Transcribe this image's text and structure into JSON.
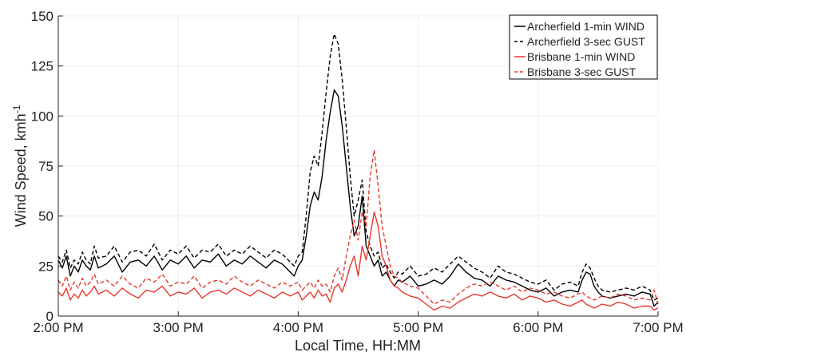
{
  "chart_data": {
    "type": "line",
    "title": "",
    "xlabel": "Local Time, HH:MM",
    "ylabel": "Wind Speed, kmh",
    "ylabel_superscript": "-1",
    "xlim": [
      0,
      300
    ],
    "ylim": [
      0,
      150
    ],
    "x_unit": "minutes after 2:00 PM",
    "x_ticks": [
      {
        "value": 0,
        "label": "2:00 PM"
      },
      {
        "value": 60,
        "label": "3:00 PM"
      },
      {
        "value": 120,
        "label": "4:00 PM"
      },
      {
        "value": 180,
        "label": "5:00 PM"
      },
      {
        "value": 240,
        "label": "6:00 PM"
      },
      {
        "value": 300,
        "label": "7:00 PM"
      }
    ],
    "y_ticks": [
      0,
      25,
      50,
      75,
      100,
      125,
      150
    ],
    "grid": true,
    "legend_position": "top-right",
    "series": [
      {
        "name": "Archerfield 1-min WIND",
        "color": "#000000",
        "dash": "solid",
        "x": [
          0,
          2,
          4,
          6,
          8,
          10,
          12,
          14,
          16,
          18,
          20,
          24,
          28,
          32,
          36,
          40,
          44,
          48,
          52,
          56,
          60,
          64,
          68,
          72,
          76,
          80,
          84,
          88,
          92,
          96,
          100,
          104,
          108,
          112,
          116,
          118,
          120,
          122,
          124,
          126,
          128,
          130,
          132,
          134,
          136,
          138,
          140,
          142,
          144,
          146,
          148,
          150,
          152,
          154,
          156,
          158,
          160,
          162,
          164,
          166,
          168,
          170,
          172,
          176,
          180,
          184,
          188,
          192,
          196,
          200,
          204,
          208,
          212,
          216,
          220,
          224,
          228,
          232,
          236,
          240,
          244,
          248,
          252,
          256,
          260,
          262,
          264,
          266,
          268,
          270,
          272,
          276,
          280,
          284,
          288,
          292,
          296,
          298,
          300
        ],
        "y": [
          28,
          24,
          30,
          20,
          25,
          22,
          28,
          25,
          23,
          30,
          24,
          26,
          30,
          22,
          27,
          28,
          25,
          30,
          23,
          28,
          26,
          30,
          24,
          28,
          27,
          31,
          25,
          28,
          26,
          30,
          27,
          24,
          28,
          26,
          22,
          20,
          25,
          28,
          40,
          55,
          62,
          58,
          70,
          88,
          102,
          113,
          110,
          95,
          75,
          55,
          40,
          45,
          60,
          35,
          30,
          25,
          28,
          20,
          22,
          18,
          15,
          18,
          17,
          20,
          15,
          16,
          18,
          16,
          20,
          26,
          22,
          19,
          18,
          15,
          20,
          18,
          17,
          15,
          13,
          12,
          14,
          10,
          12,
          13,
          12,
          18,
          22,
          21,
          15,
          12,
          10,
          9,
          10,
          11,
          10,
          12,
          11,
          5,
          7
        ]
      },
      {
        "name": "Archerfield 3-sec GUST",
        "color": "#000000",
        "dash": "dashed",
        "x": [
          0,
          2,
          4,
          6,
          8,
          10,
          12,
          14,
          16,
          18,
          20,
          24,
          28,
          32,
          36,
          40,
          44,
          48,
          52,
          56,
          60,
          64,
          68,
          72,
          76,
          80,
          84,
          88,
          92,
          96,
          100,
          104,
          108,
          112,
          116,
          118,
          120,
          122,
          124,
          126,
          128,
          130,
          132,
          134,
          136,
          138,
          140,
          142,
          144,
          146,
          148,
          150,
          152,
          154,
          156,
          158,
          160,
          162,
          164,
          166,
          168,
          170,
          172,
          176,
          180,
          184,
          188,
          192,
          196,
          200,
          204,
          208,
          212,
          216,
          220,
          224,
          228,
          232,
          236,
          240,
          244,
          248,
          252,
          256,
          260,
          262,
          264,
          266,
          268,
          270,
          272,
          276,
          280,
          284,
          288,
          292,
          296,
          298,
          300
        ],
        "y": [
          30,
          27,
          33,
          24,
          28,
          26,
          32,
          28,
          26,
          35,
          29,
          30,
          35,
          27,
          32,
          33,
          30,
          36,
          28,
          33,
          31,
          35,
          29,
          33,
          32,
          36,
          30,
          33,
          31,
          35,
          32,
          29,
          33,
          31,
          27,
          25,
          30,
          32,
          50,
          72,
          80,
          75,
          92,
          112,
          130,
          141,
          136,
          118,
          95,
          70,
          50,
          58,
          68,
          42,
          35,
          30,
          32,
          24,
          26,
          22,
          19,
          22,
          21,
          25,
          20,
          21,
          24,
          22,
          26,
          30,
          27,
          24,
          22,
          19,
          25,
          22,
          21,
          19,
          17,
          16,
          18,
          13,
          16,
          17,
          15,
          22,
          26,
          24,
          19,
          15,
          13,
          12,
          13,
          14,
          13,
          15,
          13,
          8,
          9
        ]
      },
      {
        "name": "Brisbane 1-min WIND",
        "color": "#e8372c",
        "dash": "solid",
        "x": [
          0,
          2,
          4,
          6,
          8,
          10,
          12,
          14,
          16,
          18,
          20,
          24,
          28,
          32,
          36,
          40,
          44,
          48,
          52,
          56,
          60,
          64,
          68,
          72,
          76,
          80,
          84,
          88,
          92,
          96,
          100,
          104,
          108,
          112,
          116,
          118,
          120,
          122,
          124,
          126,
          128,
          130,
          132,
          134,
          136,
          138,
          140,
          142,
          144,
          146,
          148,
          150,
          152,
          154,
          156,
          158,
          160,
          162,
          164,
          166,
          168,
          170,
          172,
          176,
          180,
          184,
          188,
          192,
          196,
          200,
          204,
          208,
          212,
          216,
          220,
          224,
          228,
          232,
          236,
          240,
          244,
          248,
          252,
          256,
          260,
          262,
          264,
          266,
          268,
          270,
          272,
          276,
          280,
          284,
          288,
          292,
          296,
          298,
          300
        ],
        "y": [
          12,
          10,
          14,
          8,
          11,
          9,
          13,
          10,
          12,
          15,
          11,
          13,
          10,
          14,
          11,
          9,
          13,
          12,
          15,
          10,
          12,
          11,
          14,
          9,
          12,
          13,
          11,
          14,
          12,
          10,
          13,
          11,
          9,
          12,
          10,
          11,
          12,
          8,
          10,
          12,
          9,
          13,
          10,
          11,
          7,
          14,
          16,
          12,
          18,
          25,
          30,
          20,
          35,
          28,
          40,
          52,
          45,
          30,
          25,
          18,
          15,
          14,
          12,
          10,
          9,
          6,
          3,
          5,
          4,
          7,
          9,
          11,
          10,
          12,
          10,
          9,
          11,
          8,
          10,
          9,
          7,
          8,
          6,
          5,
          7,
          8,
          6,
          5,
          4,
          5,
          6,
          5,
          7,
          6,
          4,
          5,
          5,
          3,
          4
        ]
      },
      {
        "name": "Brisbane 3-sec GUST",
        "color": "#e8372c",
        "dash": "dashed",
        "x": [
          0,
          2,
          4,
          6,
          8,
          10,
          12,
          14,
          16,
          18,
          20,
          24,
          28,
          32,
          36,
          40,
          44,
          48,
          52,
          56,
          60,
          64,
          68,
          72,
          76,
          80,
          84,
          88,
          92,
          96,
          100,
          104,
          108,
          112,
          116,
          118,
          120,
          122,
          124,
          126,
          128,
          130,
          132,
          134,
          136,
          138,
          140,
          142,
          144,
          146,
          148,
          150,
          152,
          154,
          156,
          158,
          160,
          162,
          164,
          166,
          168,
          170,
          172,
          176,
          180,
          184,
          188,
          192,
          196,
          200,
          204,
          208,
          212,
          216,
          220,
          224,
          228,
          232,
          236,
          240,
          244,
          248,
          252,
          256,
          260,
          262,
          264,
          266,
          268,
          270,
          272,
          276,
          280,
          284,
          288,
          292,
          296,
          298,
          300
        ],
        "y": [
          18,
          15,
          20,
          13,
          17,
          14,
          19,
          15,
          17,
          21,
          16,
          18,
          15,
          20,
          16,
          14,
          19,
          17,
          21,
          15,
          17,
          16,
          20,
          14,
          17,
          18,
          16,
          20,
          17,
          15,
          18,
          16,
          14,
          17,
          15,
          16,
          17,
          13,
          15,
          17,
          14,
          18,
          15,
          16,
          12,
          20,
          24,
          18,
          30,
          40,
          48,
          38,
          52,
          45,
          70,
          83,
          65,
          45,
          35,
          25,
          20,
          19,
          17,
          15,
          14,
          10,
          6,
          8,
          7,
          11,
          14,
          16,
          15,
          17,
          15,
          13,
          15,
          12,
          14,
          13,
          11,
          12,
          10,
          9,
          11,
          12,
          10,
          9,
          8,
          9,
          10,
          9,
          11,
          10,
          8,
          9,
          8,
          13,
          6
        ]
      }
    ]
  }
}
